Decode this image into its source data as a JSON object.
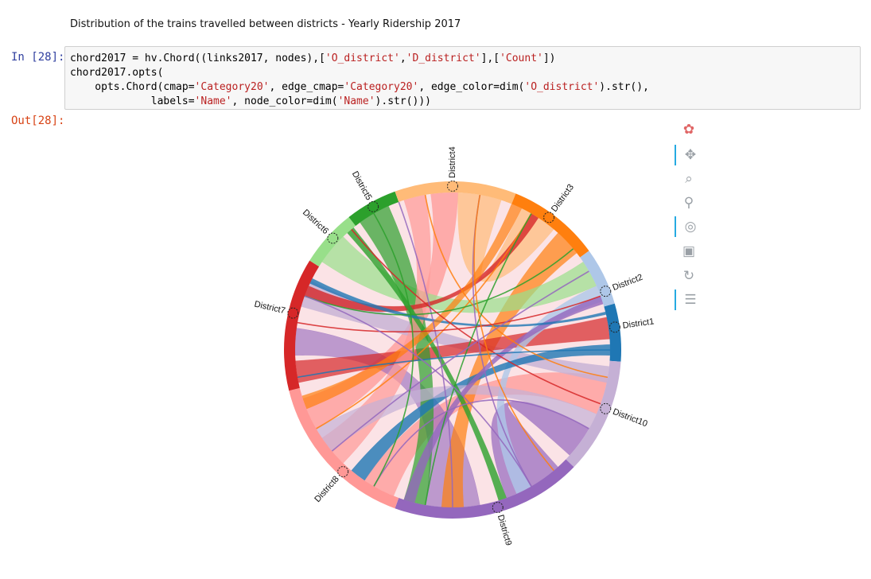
{
  "heading": "Distribution of the trains travelled between districts - Yearly Ridership 2017",
  "cell": {
    "in_prompt": "In [28]:",
    "out_prompt": "Out[28]:",
    "code_lines": [
      [
        {
          "t": "chord2017 = hv.Chord((links2017, nodes),["
        },
        {
          "s": "'O_district'"
        },
        {
          "t": ","
        },
        {
          "s": "'D_district'"
        },
        {
          "t": "],["
        },
        {
          "s": "'Count'"
        },
        {
          "t": "])"
        }
      ],
      [
        {
          "t": "chord2017.opts("
        }
      ],
      [
        {
          "t": "    opts.Chord(cmap="
        },
        {
          "s": "'Category20'"
        },
        {
          "t": ", edge_cmap="
        },
        {
          "s": "'Category20'"
        },
        {
          "t": ", edge_color=dim("
        },
        {
          "s": "'O_district'"
        },
        {
          "t": ").str(),"
        }
      ],
      [
        {
          "t": "             labels="
        },
        {
          "s": "'Name'"
        },
        {
          "t": ", node_color=dim("
        },
        {
          "s": "'Name'"
        },
        {
          "t": ").str()))"
        }
      ]
    ]
  },
  "toolbar": [
    {
      "name": "bokeh-logo-icon",
      "glyph": "✿",
      "active": false,
      "color": "#e06666"
    },
    {
      "name": "pan-tool-icon",
      "glyph": "✥",
      "active": true
    },
    {
      "name": "box-zoom-tool-icon",
      "glyph": "⌕",
      "active": false
    },
    {
      "name": "wheel-zoom-tool-icon",
      "glyph": "⚲",
      "active": false
    },
    {
      "name": "tap-tool-icon",
      "glyph": "◎",
      "active": true
    },
    {
      "name": "save-tool-icon",
      "glyph": "▣",
      "active": false
    },
    {
      "name": "reset-tool-icon",
      "glyph": "↻",
      "active": false
    },
    {
      "name": "hover-tool-icon",
      "glyph": "☰",
      "active": true
    }
  ],
  "chart_data": {
    "type": "chord",
    "title": "",
    "nodes": [
      {
        "name": "District1",
        "color": "#1f77b4",
        "angle": -8
      },
      {
        "name": "District10",
        "color": "#c5b0d5",
        "angle": 21
      },
      {
        "name": "District9",
        "color": "#9467bd",
        "angle": 74
      },
      {
        "name": "District8",
        "color": "#ff9896",
        "angle": 132
      },
      {
        "name": "District7",
        "color": "#d62728",
        "angle": 193
      },
      {
        "name": "District6",
        "color": "#98df8a",
        "angle": 223
      },
      {
        "name": "District5",
        "color": "#2ca02c",
        "angle": 241
      },
      {
        "name": "District4",
        "color": "#ffbb78",
        "angle": 270
      },
      {
        "name": "District3",
        "color": "#ff7f0e",
        "angle": 306
      },
      {
        "name": "District2",
        "color": "#aec7e8",
        "angle": 339
      }
    ],
    "arcs": [
      {
        "node": "District1",
        "start": -16,
        "end": 4
      },
      {
        "node": "District10",
        "start": 4,
        "end": 44
      },
      {
        "node": "District9",
        "start": 44,
        "end": 110
      },
      {
        "node": "District8",
        "start": 110,
        "end": 166
      },
      {
        "node": "District7",
        "start": 166,
        "end": 212
      },
      {
        "node": "District6",
        "start": 212,
        "end": 232
      },
      {
        "node": "District5",
        "start": 232,
        "end": 250
      },
      {
        "node": "District4",
        "start": 250,
        "end": 292
      },
      {
        "node": "District3",
        "start": 292,
        "end": 324
      },
      {
        "node": "District2",
        "start": 324,
        "end": 344
      }
    ],
    "edges": [
      {
        "from": "District8",
        "to": "District4",
        "a1": [
          150,
          162
        ],
        "a2": [
          262,
          272
        ],
        "color": "#ff9896",
        "opacity": 0.75
      },
      {
        "from": "District8",
        "to": "District10",
        "a1": [
          112,
          124
        ],
        "a2": [
          10,
          24
        ],
        "color": "#ff9896",
        "opacity": 0.75
      },
      {
        "from": "District9",
        "to": "District10",
        "a1": [
          48,
          70
        ],
        "a2": [
          30,
          42
        ],
        "color": "#9467bd",
        "opacity": 0.7
      },
      {
        "from": "District9",
        "to": "District7",
        "a1": [
          80,
          100
        ],
        "a2": [
          178,
          188
        ],
        "color": "#9467bd",
        "opacity": 0.6
      },
      {
        "from": "District10",
        "to": "District7",
        "a1": [
          6,
          12
        ],
        "a2": [
          196,
          206
        ],
        "color": "#c5b0d5",
        "opacity": 0.8
      },
      {
        "from": "District4",
        "to": "District3",
        "a1": [
          272,
          288
        ],
        "a2": [
          296,
          310
        ],
        "color": "#ffbb78",
        "opacity": 0.7
      },
      {
        "from": "District3",
        "to": "District9",
        "a1": [
          312,
          322
        ],
        "a2": [
          86,
          94
        ],
        "color": "#ff7f0e",
        "opacity": 0.7
      },
      {
        "from": "District7",
        "to": "District1",
        "a1": [
          168,
          176
        ],
        "a2": [
          -12,
          -4
        ],
        "color": "#d62728",
        "opacity": 0.7
      },
      {
        "from": "District6",
        "to": "District2",
        "a1": [
          214,
          226
        ],
        "a2": [
          326,
          336
        ],
        "color": "#98df8a",
        "opacity": 0.7
      },
      {
        "from": "District5",
        "to": "District9",
        "a1": [
          234,
          246
        ],
        "a2": [
          100,
          108
        ],
        "color": "#2ca02c",
        "opacity": 0.7
      },
      {
        "from": "District2",
        "to": "District9",
        "a1": [
          336,
          342
        ],
        "a2": [
          60,
          66
        ],
        "color": "#aec7e8",
        "opacity": 0.8
      },
      {
        "from": "District1",
        "to": "District8",
        "a1": [
          -2,
          2
        ],
        "a2": [
          124,
          130
        ],
        "color": "#1f77b4",
        "opacity": 0.8
      },
      {
        "from": "District4",
        "to": "District8",
        "a1": [
          252,
          260
        ],
        "a2": [
          134,
          146
        ],
        "color": "#ff9896",
        "opacity": 0.7
      },
      {
        "from": "District10",
        "to": "District8",
        "a1": [
          24,
          30
        ],
        "a2": [
          140,
          150
        ],
        "color": "#c5b0d5",
        "opacity": 0.7
      },
      {
        "from": "District9",
        "to": "District2",
        "a1": [
          104,
          108
        ],
        "a2": [
          340,
          343
        ],
        "color": "#9467bd",
        "opacity": 0.8
      },
      {
        "from": "District7",
        "to": "District3",
        "a1": [
          200,
          204
        ],
        "a2": [
          300,
          303
        ],
        "color": "#d62728",
        "opacity": 0.8
      },
      {
        "from": "District6",
        "to": "District9",
        "a1": [
          228,
          231
        ],
        "a2": [
          70,
          73
        ],
        "color": "#2ca02c",
        "opacity": 0.8
      },
      {
        "from": "District1",
        "to": "District7",
        "a1": [
          -14,
          -13
        ],
        "a2": [
          205,
          207
        ],
        "color": "#1f77b4",
        "opacity": 0.8
      },
      {
        "from": "District3",
        "to": "District8",
        "a1": [
          292,
          296
        ],
        "a2": [
          158,
          163
        ],
        "color": "#ff7f0e",
        "opacity": 0.7
      }
    ]
  }
}
